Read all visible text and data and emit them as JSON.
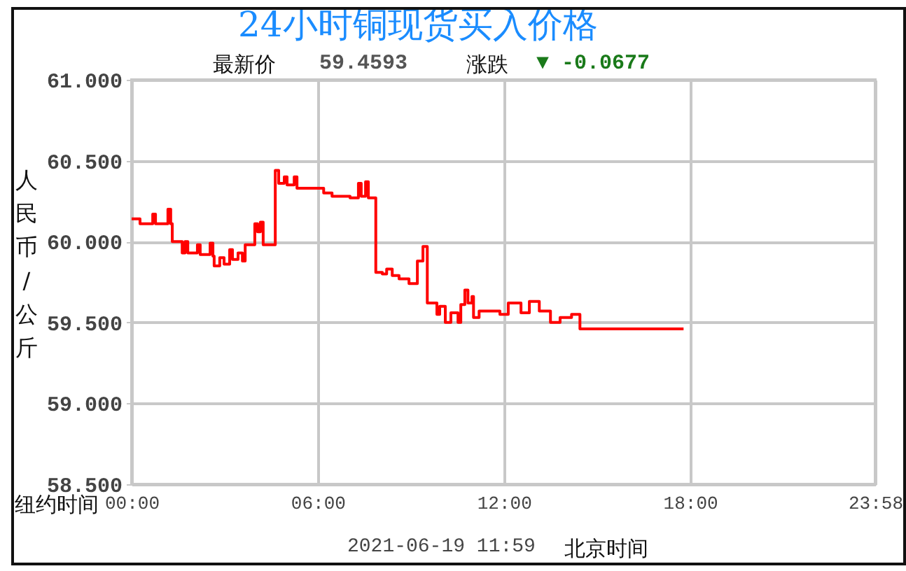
{
  "chart_data": {
    "type": "step",
    "title": "24小时铜现货买入价格",
    "xlabel": "纽约时间",
    "ylabel": "人民币/公斤",
    "annotations": [
      "最新价",
      "59.4593",
      "涨跌",
      "▼ -0.0677",
      "2021-06-19 11:59",
      "北京时间"
    ],
    "x": [
      0,
      0.27,
      0.68,
      0.77,
      1.17,
      1.26,
      1.31,
      1.63,
      1.72,
      1.81,
      2.12,
      2.21,
      2.53,
      2.62,
      2.66,
      2.84,
      2.98,
      3.16,
      3.25,
      3.43,
      3.57,
      3.66,
      3.97,
      4.06,
      4.15,
      4.24,
      4.63,
      4.74,
      4.92,
      5.01,
      5.24,
      5.33,
      5.69,
      6.0,
      6.19,
      6.46,
      7.04,
      7.31,
      7.4,
      7.54,
      7.63,
      7.87,
      8.08,
      8.22,
      8.4,
      8.62,
      8.94,
      9.21,
      9.39,
      9.53,
      9.84,
      9.93,
      10.11,
      10.29,
      10.52,
      10.61,
      10.74,
      10.84,
      10.97,
      11.02,
      11.2,
      11.87,
      12.14,
      12.55,
      12.82,
      13.14,
      13.5,
      13.81,
      14.18,
      14.45,
      17.79
    ],
    "values": [
      60.14,
      60.11,
      60.17,
      60.11,
      60.2,
      60.11,
      60.0,
      59.93,
      60.0,
      59.93,
      59.98,
      59.92,
      59.99,
      59.91,
      59.85,
      59.9,
      59.86,
      59.95,
      59.89,
      59.93,
      59.88,
      59.98,
      60.11,
      60.06,
      60.12,
      59.98,
      60.44,
      60.36,
      60.4,
      60.35,
      60.4,
      60.33,
      60.33,
      60.33,
      60.3,
      60.28,
      60.27,
      60.36,
      60.28,
      60.37,
      60.27,
      59.81,
      59.8,
      59.83,
      59.79,
      59.77,
      59.74,
      59.88,
      59.97,
      59.62,
      59.55,
      59.6,
      59.5,
      59.56,
      59.5,
      59.61,
      59.7,
      59.62,
      59.66,
      59.53,
      59.57,
      59.55,
      59.62,
      59.56,
      59.63,
      59.57,
      59.5,
      59.53,
      59.55,
      59.46,
      59.46
    ],
    "color": "#ff0000",
    "xlim": [
      0,
      23.9667
    ],
    "xticks": [
      {
        "value": 0,
        "label": "00:00"
      },
      {
        "value": 6,
        "label": "06:00"
      },
      {
        "value": 12,
        "label": "12:00"
      },
      {
        "value": 18,
        "label": "18:00"
      },
      {
        "value": 23.9667,
        "label": "23:58"
      }
    ],
    "ylim": [
      58.5,
      61
    ],
    "yticks": [
      {
        "value": 58.5,
        "label": "58.500"
      },
      {
        "value": 59,
        "label": "59.000"
      },
      {
        "value": 59.5,
        "label": "59.500"
      },
      {
        "value": 60,
        "label": "60.000"
      },
      {
        "value": 60.5,
        "label": "60.500"
      },
      {
        "value": 61,
        "label": "61.000"
      }
    ],
    "grid": true
  }
}
